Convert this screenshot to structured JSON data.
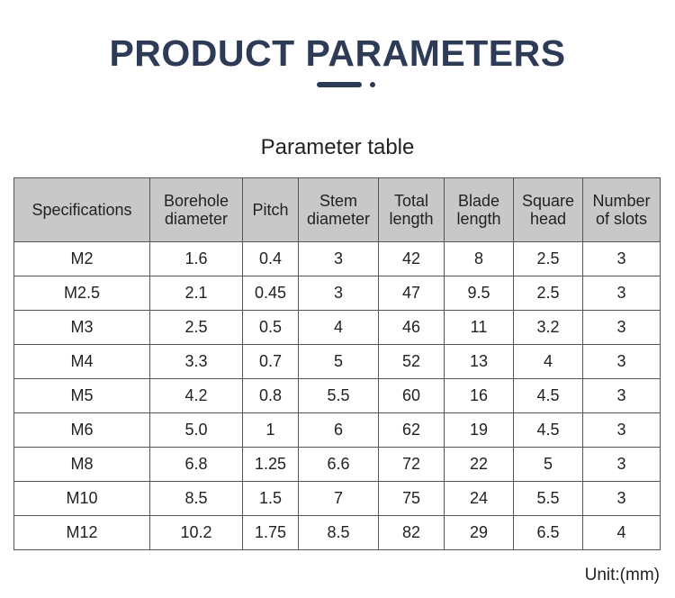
{
  "header": {
    "title": "PRODUCT PARAMETERS"
  },
  "table": {
    "caption": "Parameter table",
    "columns": [
      "Specifications",
      "Borehole diameter",
      "Pitch",
      "Stem diameter",
      "Total length",
      "Blade length",
      "Square head",
      "Number of slots"
    ],
    "rows": [
      [
        "M2",
        "1.6",
        "0.4",
        "3",
        "42",
        "8",
        "2.5",
        "3"
      ],
      [
        "M2.5",
        "2.1",
        "0.45",
        "3",
        "47",
        "9.5",
        "2.5",
        "3"
      ],
      [
        "M3",
        "2.5",
        "0.5",
        "4",
        "46",
        "11",
        "3.2",
        "3"
      ],
      [
        "M4",
        "3.3",
        "0.7",
        "5",
        "52",
        "13",
        "4",
        "3"
      ],
      [
        "M5",
        "4.2",
        "0.8",
        "5.5",
        "60",
        "16",
        "4.5",
        "3"
      ],
      [
        "M6",
        "5.0",
        "1",
        "6",
        "62",
        "19",
        "4.5",
        "3"
      ],
      [
        "M8",
        "6.8",
        "1.25",
        "6.6",
        "72",
        "22",
        "5",
        "3"
      ],
      [
        "M10",
        "8.5",
        "1.5",
        "7",
        "75",
        "24",
        "5.5",
        "3"
      ],
      [
        "M12",
        "10.2",
        "1.75",
        "8.5",
        "82",
        "29",
        "6.5",
        "4"
      ]
    ],
    "unit_note": "Unit:(mm)"
  }
}
